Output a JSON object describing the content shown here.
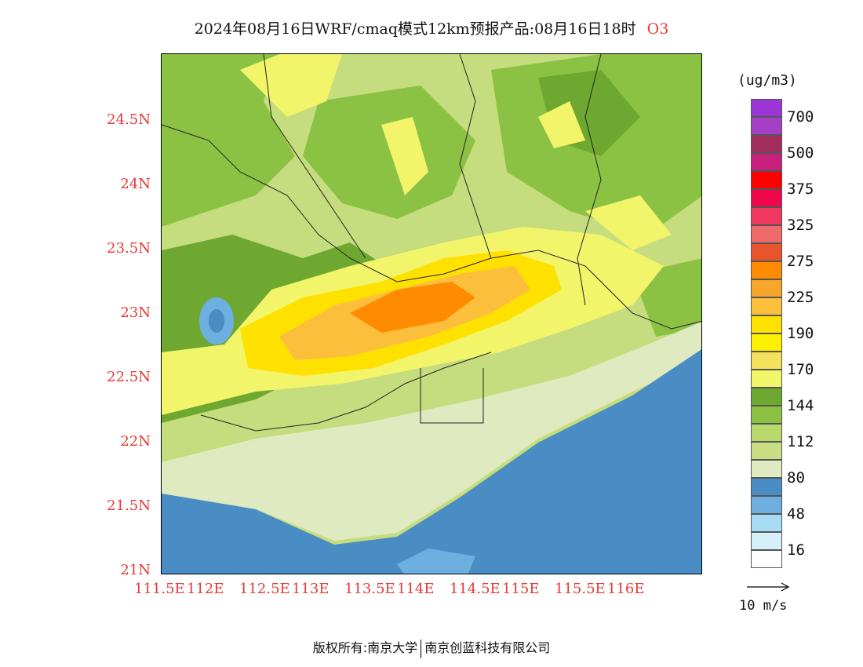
{
  "title": {
    "text": "2024年08月16日WRF/cmaq模式12km预报产品:08月16日18时",
    "species": "O3"
  },
  "map": {
    "lat_labels": [
      "24.5N",
      "24N",
      "23.5N",
      "23N",
      "22.5N",
      "22N",
      "21.5N",
      "21N"
    ],
    "lon_labels": [
      "111.5E",
      "112E",
      "112.5E",
      "113E",
      "113.5E",
      "114E",
      "114.5E",
      "115E",
      "115.5E",
      "116E"
    ],
    "background_color": "#c5dd7e",
    "sea_color": "#4a8cc4"
  },
  "colorbar": {
    "unit": "(ug/m3)",
    "levels": [
      {
        "color": "#9b35d6",
        "label": "700"
      },
      {
        "color": "#a53fc6",
        "label": ""
      },
      {
        "color": "#a12e5c",
        "label": "500"
      },
      {
        "color": "#c7207d",
        "label": ""
      },
      {
        "color": "#ff0000",
        "label": "375"
      },
      {
        "color": "#f0064a",
        "label": ""
      },
      {
        "color": "#f0385f",
        "label": "325"
      },
      {
        "color": "#f06a6a",
        "label": ""
      },
      {
        "color": "#e8552c",
        "label": "275"
      },
      {
        "color": "#ff8c00",
        "label": ""
      },
      {
        "color": "#f6a629",
        "label": "225"
      },
      {
        "color": "#fbbf3c",
        "label": ""
      },
      {
        "color": "#ffe100",
        "label": "190"
      },
      {
        "color": "#fff000",
        "label": ""
      },
      {
        "color": "#f4e15b",
        "label": "170"
      },
      {
        "color": "#f2f46a",
        "label": ""
      },
      {
        "color": "#6ea830",
        "label": "144"
      },
      {
        "color": "#8cc243",
        "label": ""
      },
      {
        "color": "#b9d86b",
        "label": "112"
      },
      {
        "color": "#c9dd83",
        "label": ""
      },
      {
        "color": "#dfeac0",
        "label": "80"
      },
      {
        "color": "#4a8cc4",
        "label": ""
      },
      {
        "color": "#6db0df",
        "label": "48"
      },
      {
        "color": "#a8dcf4",
        "label": ""
      },
      {
        "color": "#d6f0fa",
        "label": "16"
      },
      {
        "color": "#ffffff",
        "label": ""
      }
    ]
  },
  "wind_reference": {
    "label": "10 m/s"
  },
  "footer": {
    "left": "版权所有:南京大学",
    "right": "南京创蓝科技有限公司"
  }
}
